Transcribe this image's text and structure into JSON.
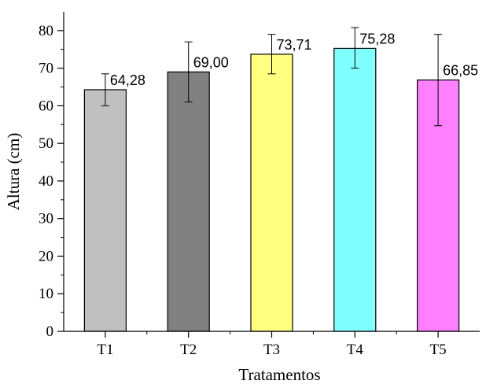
{
  "chart_data": {
    "type": "bar",
    "title": "",
    "xlabel": "Tratamentos",
    "ylabel": "Altura (cm)",
    "categories": [
      "T1",
      "T2",
      "T3",
      "T4",
      "T5"
    ],
    "values": [
      64.28,
      69.0,
      73.71,
      75.28,
      66.85
    ],
    "value_labels": [
      "64,28",
      "69,00",
      "73,71",
      "75,28",
      "66,85"
    ],
    "error_bars": [
      {
        "low": 60.0,
        "high": 68.5
      },
      {
        "low": 61.0,
        "high": 77.0
      },
      {
        "low": 68.5,
        "high": 79.0
      },
      {
        "low": 70.0,
        "high": 80.8
      },
      {
        "low": 54.7,
        "high": 79.0
      }
    ],
    "bar_colors": [
      "#c0c0c0",
      "#808080",
      "#ffff80",
      "#80ffff",
      "#ff80ff"
    ],
    "ylim": [
      0,
      85
    ],
    "yticks": [
      0,
      10,
      20,
      30,
      40,
      50,
      60,
      70,
      80
    ],
    "grid": false,
    "legend": "none"
  }
}
